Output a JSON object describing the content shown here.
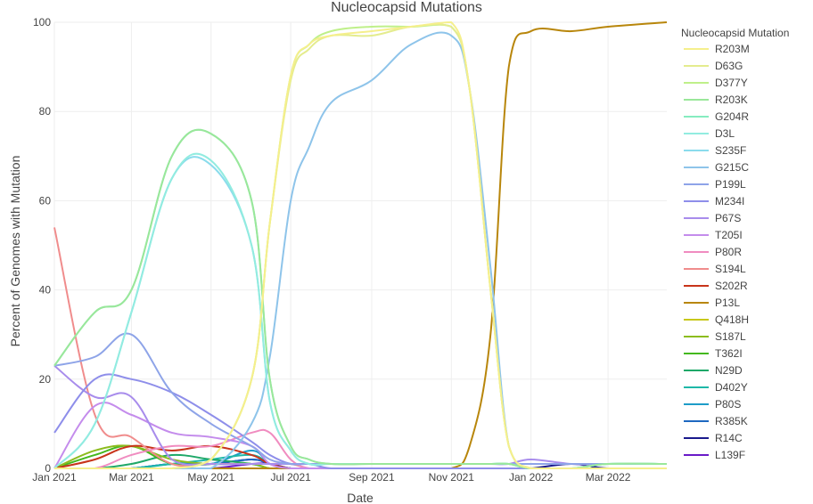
{
  "chart_data": {
    "type": "line",
    "title": "Nucleocapsid Mutations",
    "xlabel": "Date",
    "ylabel": "Percent of Genomes with Mutation",
    "ylim": [
      0,
      100
    ],
    "xlim": [
      "2021-01-01",
      "2022-04-15"
    ],
    "grid": true,
    "legend_placement": "right",
    "legend_title": "Nucleocapsid Mutation",
    "x_ticks": [
      {
        "date": "2021-01-01",
        "label": "Jan 2021"
      },
      {
        "date": "2021-03-01",
        "label": "Mar 2021"
      },
      {
        "date": "2021-05-01",
        "label": "May 2021"
      },
      {
        "date": "2021-07-01",
        "label": "Jul 2021"
      },
      {
        "date": "2021-09-01",
        "label": "Sep 2021"
      },
      {
        "date": "2021-11-01",
        "label": "Nov 2021"
      },
      {
        "date": "2022-01-01",
        "label": "Jan 2022"
      },
      {
        "date": "2022-03-01",
        "label": "Mar 2022"
      }
    ],
    "y_ticks": [
      0,
      20,
      40,
      60,
      80,
      100
    ],
    "x": [
      "2021-01-01",
      "2021-02-01",
      "2021-03-01",
      "2021-04-01",
      "2021-05-01",
      "2021-06-01",
      "2021-06-15",
      "2021-07-01",
      "2021-07-15",
      "2021-08-01",
      "2021-09-01",
      "2021-10-01",
      "2021-11-01",
      "2021-11-15",
      "2021-12-01",
      "2021-12-15",
      "2022-01-01",
      "2022-02-01",
      "2022-03-01",
      "2022-04-15"
    ],
    "series": [
      {
        "name": "R203M",
        "color": "#f5ef8c",
        "values": [
          0,
          0,
          0,
          0,
          2,
          20,
          55,
          88,
          95,
          97,
          98,
          99,
          100,
          85,
          40,
          5,
          0,
          0,
          0,
          0
        ]
      },
      {
        "name": "D63G",
        "color": "#e4ec8e",
        "values": [
          0,
          0,
          0,
          0,
          2,
          20,
          55,
          87,
          94,
          97,
          97,
          99,
          99,
          85,
          40,
          5,
          0,
          0,
          0,
          0
        ]
      },
      {
        "name": "D377Y",
        "color": "#bff08a",
        "values": [
          0,
          0,
          0,
          0,
          2,
          20,
          55,
          88,
          95,
          98,
          99,
          99,
          99,
          85,
          40,
          5,
          0,
          0,
          0,
          0
        ]
      },
      {
        "name": "R203K",
        "color": "#9ae79a",
        "values": [
          23,
          35,
          40,
          70,
          75,
          60,
          20,
          5,
          2,
          1,
          1,
          1,
          1,
          1,
          1,
          1,
          0,
          0,
          1,
          1
        ]
      },
      {
        "name": "G204R",
        "color": "#86ecc0",
        "values": [
          23,
          35,
          40,
          70,
          75,
          60,
          20,
          5,
          2,
          1,
          1,
          1,
          1,
          1,
          1,
          1,
          0,
          0,
          1,
          1
        ]
      },
      {
        "name": "D3L",
        "color": "#92ece0",
        "values": [
          0,
          10,
          35,
          65,
          69,
          50,
          15,
          4,
          1,
          1,
          1,
          1,
          1,
          1,
          1,
          1,
          0,
          0,
          1,
          1
        ]
      },
      {
        "name": "S235F",
        "color": "#8adcec",
        "values": [
          0,
          10,
          35,
          65,
          68,
          50,
          15,
          4,
          1,
          1,
          1,
          1,
          1,
          1,
          1,
          1,
          0,
          0,
          1,
          1
        ]
      },
      {
        "name": "G215C",
        "color": "#8ec4ea",
        "values": [
          0,
          0,
          0,
          0,
          0,
          10,
          25,
          60,
          72,
          82,
          87,
          95,
          97,
          85,
          45,
          5,
          0,
          0,
          0,
          0
        ]
      },
      {
        "name": "P199L",
        "color": "#8ea4e8",
        "values": [
          23,
          25,
          30,
          17,
          10,
          5,
          2,
          1,
          1,
          1,
          1,
          1,
          1,
          1,
          1,
          1,
          1,
          1,
          1,
          1
        ]
      },
      {
        "name": "M234I",
        "color": "#8e8eea",
        "values": [
          8,
          20,
          20,
          17,
          12,
          6,
          3,
          1,
          1,
          0,
          0,
          0,
          0,
          0,
          0,
          0,
          0,
          0,
          0,
          0
        ]
      },
      {
        "name": "P67S",
        "color": "#a88cec",
        "values": [
          23,
          16,
          16,
          2,
          1,
          1,
          1,
          1,
          1,
          1,
          1,
          1,
          1,
          1,
          1,
          1,
          2,
          1,
          1,
          1
        ]
      },
      {
        "name": "T205I",
        "color": "#c48cec",
        "values": [
          0,
          14,
          12,
          8,
          7,
          5,
          1,
          0,
          0,
          0,
          0,
          0,
          0,
          0,
          0,
          0,
          0,
          0,
          0,
          0
        ]
      },
      {
        "name": "P80R",
        "color": "#f08cc0",
        "values": [
          0,
          0,
          3,
          5,
          5,
          8,
          8,
          2,
          0,
          0,
          0,
          0,
          0,
          0,
          0,
          0,
          0,
          0,
          0,
          0
        ]
      },
      {
        "name": "S194L",
        "color": "#f08c8c",
        "values": [
          54,
          12,
          7,
          1,
          1,
          1,
          1,
          1,
          0,
          0,
          0,
          0,
          0,
          0,
          0,
          0,
          0,
          0,
          0,
          0
        ]
      },
      {
        "name": "S202R",
        "color": "#c8341a",
        "values": [
          0,
          2,
          5,
          4,
          5,
          3,
          1,
          0,
          0,
          0,
          0,
          0,
          0,
          0,
          0,
          0,
          0,
          0,
          0,
          0
        ]
      },
      {
        "name": "P13L",
        "color": "#b8860b",
        "values": [
          0,
          0,
          0,
          0,
          0,
          0,
          0,
          0,
          0,
          0,
          0,
          0,
          0,
          5,
          30,
          90,
          98,
          98,
          99,
          100
        ]
      },
      {
        "name": "Q418H",
        "color": "#c8c81a",
        "values": [
          0,
          0,
          0,
          0,
          0,
          0,
          0,
          0,
          0,
          0,
          0,
          0,
          0,
          0,
          0,
          0,
          0,
          0,
          0,
          0
        ]
      },
      {
        "name": "S187L",
        "color": "#8cbc1e",
        "values": [
          0,
          4,
          5,
          2,
          1,
          1,
          0,
          0,
          0,
          0,
          0,
          0,
          0,
          0,
          0,
          0,
          0,
          0,
          0,
          0
        ]
      },
      {
        "name": "T362I",
        "color": "#44b81e",
        "values": [
          0,
          3,
          5,
          1,
          1,
          1,
          1,
          1,
          1,
          1,
          1,
          1,
          1,
          1,
          1,
          1,
          1,
          1,
          1,
          1
        ]
      },
      {
        "name": "N29D",
        "color": "#1ea868",
        "values": [
          0,
          0,
          1,
          3,
          2,
          1,
          0,
          0,
          0,
          0,
          0,
          0,
          0,
          0,
          0,
          0,
          0,
          0,
          0,
          0
        ]
      },
      {
        "name": "D402Y",
        "color": "#1eb8a8",
        "values": [
          0,
          0,
          0,
          1,
          2,
          3,
          1,
          0,
          0,
          0,
          0,
          0,
          0,
          0,
          0,
          0,
          0,
          0,
          0,
          0
        ]
      },
      {
        "name": "P80S",
        "color": "#1e9cc8",
        "values": [
          0,
          0,
          0,
          1,
          1,
          4,
          1,
          0,
          0,
          0,
          0,
          0,
          0,
          0,
          0,
          0,
          0,
          0,
          0,
          0
        ]
      },
      {
        "name": "R385K",
        "color": "#1e68c0",
        "values": [
          0,
          0,
          0,
          1,
          1,
          2,
          1,
          0,
          0,
          0,
          0,
          0,
          0,
          0,
          0,
          0,
          0,
          0,
          0,
          0
        ]
      },
      {
        "name": "R14C",
        "color": "#1a1a8c",
        "values": [
          0,
          0,
          0,
          1,
          1,
          2,
          1,
          0,
          0,
          0,
          0,
          0,
          0,
          0,
          0,
          0,
          0,
          1,
          0,
          0
        ]
      },
      {
        "name": "L139F",
        "color": "#6a1ac8",
        "values": [
          0,
          0,
          0,
          0,
          0,
          1,
          1,
          0,
          0,
          0,
          0,
          0,
          0,
          0,
          0,
          0,
          0,
          0,
          0,
          0
        ]
      }
    ]
  }
}
